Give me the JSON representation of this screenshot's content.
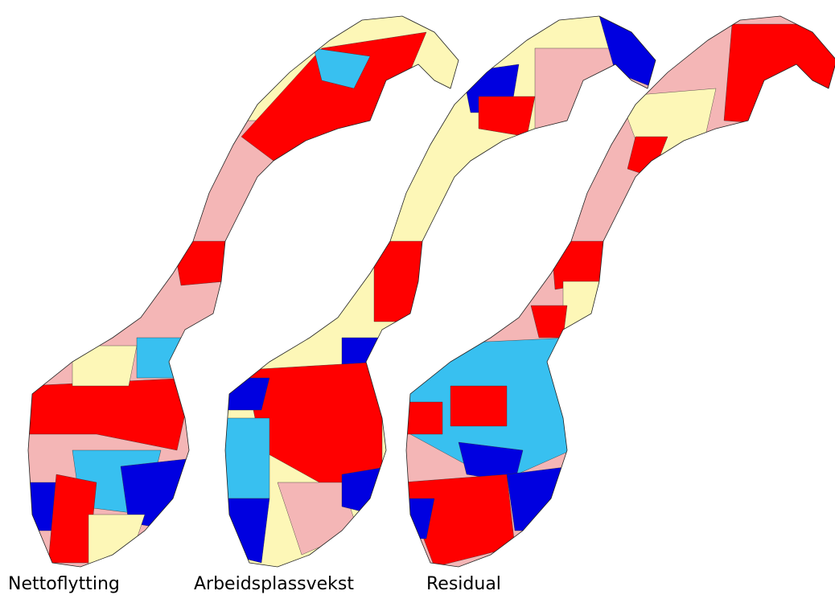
{
  "maps": [
    {
      "label": "Nettoflytting"
    },
    {
      "label": "Arbeidsplassvekst"
    },
    {
      "label": "Residual"
    }
  ]
}
